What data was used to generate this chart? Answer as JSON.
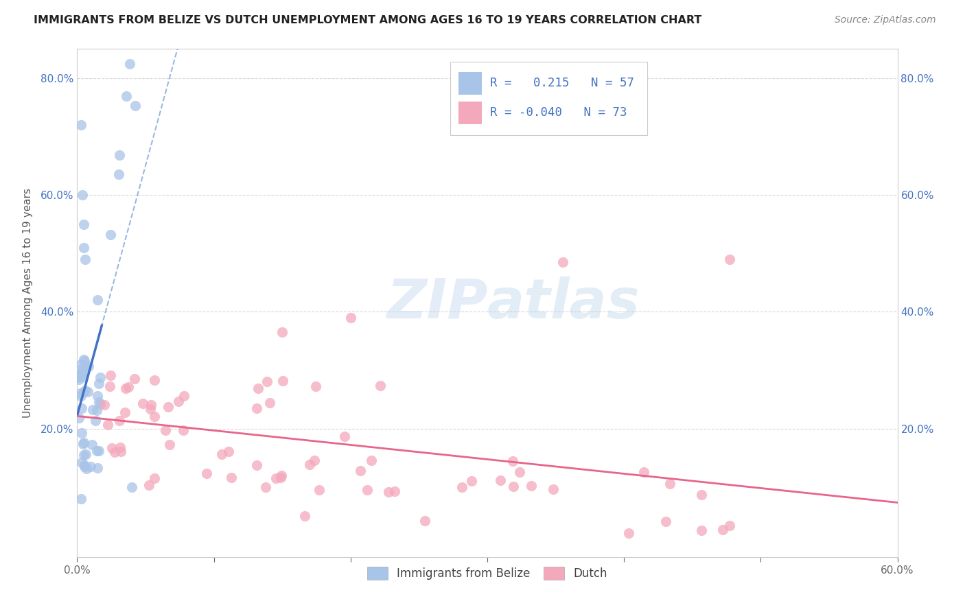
{
  "title": "IMMIGRANTS FROM BELIZE VS DUTCH UNEMPLOYMENT AMONG AGES 16 TO 19 YEARS CORRELATION CHART",
  "source": "Source: ZipAtlas.com",
  "ylabel": "Unemployment Among Ages 16 to 19 years",
  "xlim": [
    0.0,
    0.6
  ],
  "ylim": [
    -0.02,
    0.85
  ],
  "xtick_pos": [
    0.0,
    0.1,
    0.2,
    0.3,
    0.4,
    0.5,
    0.6
  ],
  "xtick_labels": [
    "0.0%",
    "",
    "",
    "",
    "",
    "",
    "60.0%"
  ],
  "ytick_pos": [
    0.0,
    0.2,
    0.4,
    0.6,
    0.8
  ],
  "ytick_labels_left": [
    "",
    "20.0%",
    "40.0%",
    "60.0%",
    "80.0%"
  ],
  "ytick_labels_right": [
    "20.0%",
    "40.0%",
    "60.0%",
    "80.0%"
  ],
  "ytick_pos_right": [
    0.2,
    0.4,
    0.6,
    0.8
  ],
  "legend_label1": "Immigrants from Belize",
  "legend_label2": "Dutch",
  "R1": "0.215",
  "N1": "57",
  "R2": "-0.040",
  "N2": "73",
  "color1": "#a8c4e8",
  "color2": "#f4a8bb",
  "trendline1_color": "#4472c4",
  "trendline2_color": "#e8658a",
  "dashed_line_color": "#80a8d8",
  "watermark_color": "#d8e8f8",
  "background_color": "#ffffff",
  "grid_color": "#d8d8d8",
  "title_color": "#222222",
  "axis_label_color": "#555555",
  "tick_color": "#666666",
  "right_tick_color": "#4472c4",
  "source_color": "#888888"
}
